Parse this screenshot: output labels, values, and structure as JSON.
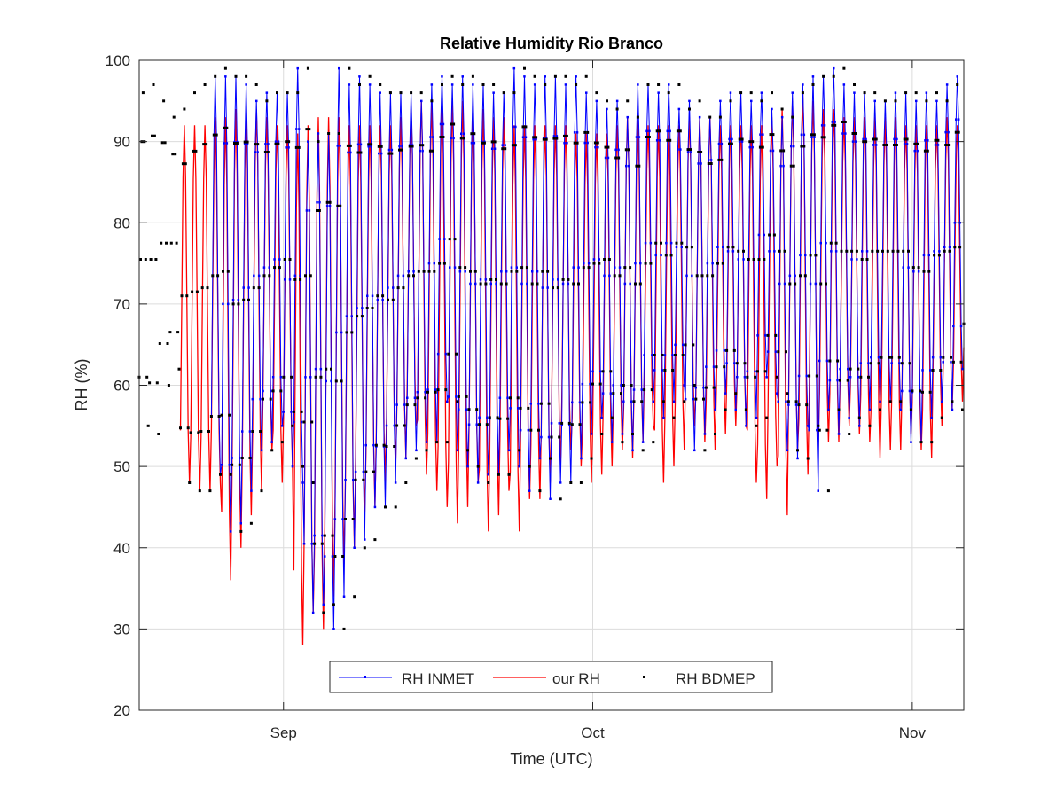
{
  "chart_data": {
    "type": "line",
    "title": "Relative Humidity Rio Branco",
    "xlabel": "Time (UTC)",
    "ylabel": "RH (%)",
    "ylim": [
      20,
      100
    ],
    "xlim": [
      "2024-08-18",
      "2024-11-06"
    ],
    "y_ticks": [
      "20",
      "30",
      "40",
      "50",
      "60",
      "70",
      "80",
      "90",
      "100"
    ],
    "x_ticks": [
      {
        "label": "Sep",
        "date": "2024-09-01"
      },
      {
        "label": "Oct",
        "date": "2024-10-01"
      },
      {
        "label": "Nov",
        "date": "2024-11-01"
      }
    ],
    "grid": true,
    "legend_position": "bottom-center",
    "series": [
      {
        "name": "RH INMET",
        "color": "#0000ff",
        "style": "line-dot",
        "start_date": "2024-08-25",
        "end_date": "2024-11-06",
        "daily_max": [
          98,
          98,
          98,
          97,
          95,
          96,
          96,
          96,
          99,
          90,
          91,
          91,
          99,
          97,
          98,
          97,
          96,
          96,
          96,
          96,
          95,
          97,
          98,
          97,
          98,
          97,
          97,
          96,
          96,
          99,
          98,
          97,
          98,
          98,
          97,
          98,
          96,
          95,
          94,
          95,
          93,
          97,
          97,
          96,
          97,
          94,
          95,
          93,
          93,
          95,
          96,
          96,
          95,
          96,
          94,
          93,
          96,
          97,
          98,
          98,
          99,
          97,
          96,
          96,
          95,
          95,
          96,
          96,
          95,
          96,
          95,
          97,
          98
        ],
        "daily_min": [
          49,
          42,
          43,
          47,
          52,
          53,
          55,
          50,
          48,
          32,
          33,
          30,
          34,
          40,
          41,
          45,
          45,
          48,
          51,
          52,
          53,
          53,
          58,
          52,
          50,
          48,
          49,
          49,
          52,
          50,
          47,
          51,
          46,
          48,
          48,
          51,
          54,
          56,
          53,
          54,
          52,
          53,
          58,
          56,
          58,
          60,
          52,
          54,
          57,
          59,
          57,
          55,
          56,
          61,
          59,
          52,
          51,
          55,
          47,
          57,
          54,
          56,
          55,
          57,
          58,
          58,
          57,
          53,
          53,
          56,
          58,
          57,
          62
        ]
      },
      {
        "name": "our RH",
        "color": "#ff0000",
        "style": "line",
        "start_date": "2024-08-22",
        "end_date": "2024-11-06",
        "daily_max": [
          92,
          92,
          92,
          93,
          93,
          94,
          94,
          94,
          93,
          92,
          92,
          91,
          92,
          93,
          93,
          93,
          92,
          92,
          92,
          92,
          92,
          93,
          94,
          95,
          95,
          96,
          95,
          95,
          94,
          94,
          93,
          93,
          92,
          92,
          92,
          92,
          92,
          92,
          91,
          91,
          91,
          91,
          92,
          93,
          93,
          92,
          92,
          92,
          92,
          93,
          93,
          93,
          92,
          92,
          92,
          92,
          92,
          93,
          94,
          95,
          96,
          95,
          94,
          94,
          93,
          93,
          93,
          93,
          93,
          93,
          92,
          92,
          92,
          92,
          93,
          92,
          92
        ],
        "daily_min": [
          48,
          47,
          47,
          48,
          36,
          40,
          44,
          47,
          52,
          48,
          50,
          28,
          32,
          30,
          34,
          38,
          40,
          44,
          45,
          48,
          50,
          51,
          55,
          49,
          47,
          45,
          43,
          45,
          48,
          42,
          44,
          47,
          42,
          46,
          46,
          48,
          50,
          52,
          50,
          48,
          49,
          50,
          52,
          51,
          53,
          55,
          48,
          50,
          52,
          55,
          53,
          52,
          54,
          55,
          55,
          48,
          46,
          50,
          44,
          52,
          49,
          52,
          53,
          53,
          55,
          54,
          53,
          51,
          52,
          52,
          54,
          52,
          51,
          55,
          57,
          58,
          60
        ]
      },
      {
        "name": "RH BDMEP",
        "color": "#000000",
        "style": "dots",
        "start_date": "2024-08-18",
        "end_date": "2024-11-06",
        "daily_max": [
          96,
          97,
          95,
          93,
          94,
          96,
          97,
          98,
          99,
          98,
          98,
          97,
          95,
          96,
          96,
          96,
          99,
          90,
          91,
          91,
          99,
          97,
          98,
          97,
          96,
          96,
          96,
          96,
          95,
          97,
          98,
          97,
          98,
          97,
          97,
          96,
          96,
          99,
          98,
          97,
          98,
          98,
          97,
          98,
          96,
          95,
          94,
          95,
          93,
          97,
          97,
          96,
          97,
          94,
          95,
          93,
          93,
          95,
          96,
          96,
          95,
          96,
          94,
          93,
          96,
          97,
          98,
          98,
          99,
          97,
          96,
          96,
          95,
          95,
          96,
          96,
          95,
          96,
          95,
          97,
          100
        ],
        "daily_min": [
          55,
          54,
          60,
          62,
          48,
          47,
          47,
          49,
          49,
          42,
          43,
          47,
          52,
          53,
          55,
          50,
          48,
          32,
          33,
          30,
          34,
          40,
          41,
          45,
          45,
          48,
          51,
          52,
          53,
          53,
          58,
          52,
          50,
          48,
          49,
          49,
          52,
          50,
          47,
          51,
          46,
          48,
          48,
          51,
          54,
          56,
          53,
          54,
          52,
          53,
          58,
          56,
          58,
          60,
          52,
          54,
          57,
          59,
          57,
          55,
          56,
          61,
          59,
          52,
          51,
          55,
          47,
          57,
          54,
          56,
          55,
          57,
          58,
          58,
          57,
          53,
          53,
          56,
          58,
          57,
          62
        ]
      }
    ]
  }
}
